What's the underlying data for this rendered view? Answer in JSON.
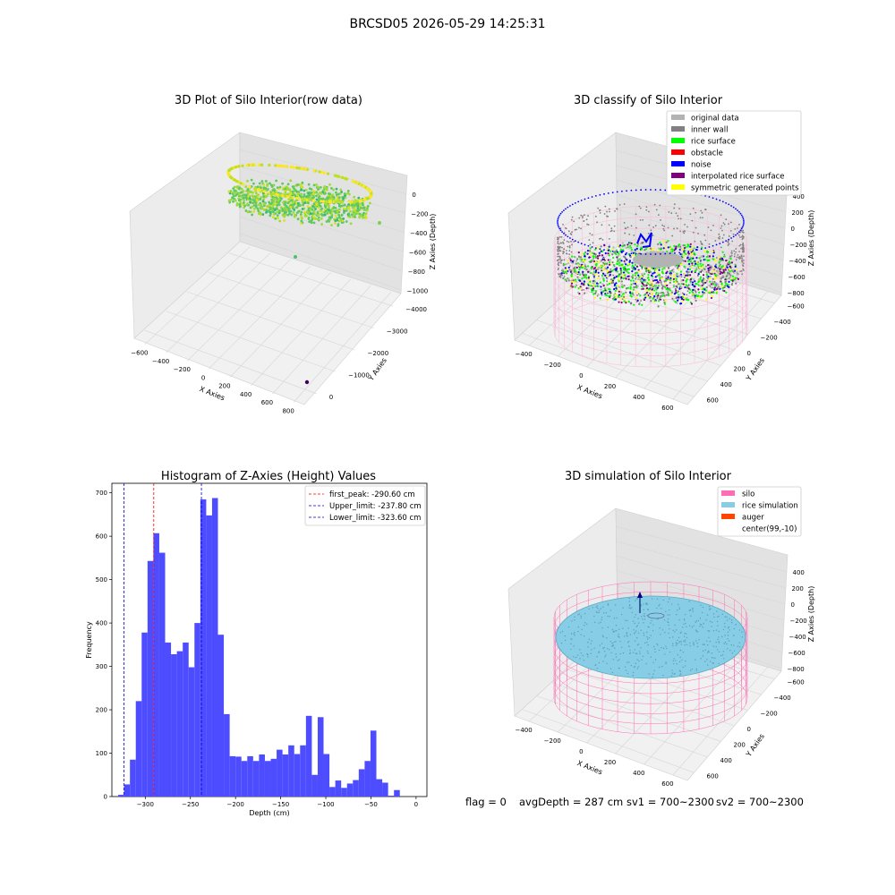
{
  "figure": {
    "title": "BRCSD05 2026-05-29 14:25:31",
    "status_text": {
      "flag": "flag = 0",
      "avg_depth": "avgDepth = 287 cm",
      "sv1": "sv1 = 700~2300",
      "sv2": "sv2 = 700~2300"
    }
  },
  "colors": {
    "hist_bar": "#4d4dff",
    "peak_line": "#ff0000",
    "limit_line": "#0000cc",
    "silo_wire": "#ff6eb4",
    "rice_fill": "#87cde6",
    "auger": "#ff4500",
    "rice_surface": "#00ff00",
    "inner_wall": "#808080",
    "original_data": "#b3b3b3",
    "obstacle": "#ff0000",
    "noise": "#0000ff",
    "interpolated": "#800080",
    "symmetric": "#ffff00"
  },
  "chart_data": [
    {
      "type": "scatter",
      "projection": "3d",
      "title": "3D Plot of Silo Interior(row data)",
      "xlabel": "X Axies",
      "ylabel": "Y Axies",
      "zlabel": "Z Axies (Depth)",
      "x_ticks": [
        "−600",
        "−400",
        "−200",
        "0",
        "200",
        "400",
        "600",
        "800"
      ],
      "y_ticks": [
        "0",
        "−1000",
        "−2000",
        "−3000",
        "−4000"
      ],
      "z_ticks": [
        "0",
        "−200",
        "−400",
        "−600",
        "−800",
        "−1000"
      ],
      "grid": true,
      "colormap": "viridis"
    },
    {
      "type": "scatter",
      "projection": "3d",
      "title": "3D classify of Silo Interior",
      "xlabel": "X Axies",
      "ylabel": "Y Axies",
      "zlabel": "Z Axies (Depth)",
      "x_ticks": [
        "−400",
        "−200",
        "0",
        "200",
        "400",
        "600"
      ],
      "y_ticks": [
        "600",
        "400",
        "200",
        "0",
        "−200",
        "−400",
        "−600"
      ],
      "z_ticks": [
        "400",
        "200",
        "0",
        "−200",
        "−400",
        "−600",
        "−800"
      ],
      "grid": true,
      "legend_position": "top-right",
      "legend": [
        {
          "label": "original data",
          "color": "#b3b3b3"
        },
        {
          "label": "inner wall",
          "color": "#808080"
        },
        {
          "label": "rice surface",
          "color": "#00ff00"
        },
        {
          "label": "obstacle",
          "color": "#ff0000"
        },
        {
          "label": "noise",
          "color": "#0000ff"
        },
        {
          "label": "interpolated rice surface",
          "color": "#800080"
        },
        {
          "label": "symmetric generated points",
          "color": "#ffff00"
        }
      ]
    },
    {
      "type": "bar",
      "subtype": "histogram",
      "title": "Histogram of Z-Axies (Height) Values",
      "xlabel": "Depth (cm)",
      "ylabel": "Frequency",
      "xlim": [
        -337,
        12
      ],
      "ylim": [
        0,
        722
      ],
      "x_ticks": [
        -300,
        -250,
        -200,
        -150,
        -100,
        -50,
        0
      ],
      "y_ticks": [
        0,
        100,
        200,
        300,
        400,
        500,
        600,
        700
      ],
      "bin_start": -330,
      "bin_width": 6.5,
      "values": [
        4,
        28,
        85,
        220,
        378,
        543,
        607,
        562,
        355,
        328,
        335,
        355,
        298,
        400,
        685,
        648,
        688,
        373,
        190,
        93,
        92,
        82,
        93,
        82,
        97,
        82,
        87,
        108,
        97,
        118,
        98,
        118,
        186,
        50,
        183,
        98,
        22,
        37,
        20,
        30,
        38,
        63,
        82,
        152,
        40,
        32,
        2,
        15
      ],
      "vlines": [
        {
          "label": "first_peak: -290.60 cm",
          "x": -290.6,
          "style": "dashed",
          "color": "#ff0000"
        },
        {
          "label": "Upper_limit: -237.80 cm",
          "x": -237.8,
          "style": "dashed",
          "color": "#0000cc"
        },
        {
          "label": "Lower_limit: -323.60 cm",
          "x": -323.6,
          "style": "dashed",
          "color": "#0000cc"
        }
      ],
      "legend_position": "top-right",
      "grid": false
    },
    {
      "type": "scatter",
      "projection": "3d",
      "title": "3D simulation of Silo Interior",
      "xlabel": "X Axies",
      "ylabel": "Y Axies",
      "zlabel": "Z Axies (Depth)",
      "x_ticks": [
        "−400",
        "−200",
        "0",
        "200",
        "400",
        "600"
      ],
      "y_ticks": [
        "600",
        "400",
        "200",
        "0",
        "−200",
        "−400",
        "−600"
      ],
      "z_ticks": [
        "400",
        "200",
        "0",
        "−200",
        "−400",
        "−600",
        "−800"
      ],
      "grid": true,
      "legend_position": "top-right",
      "legend": [
        {
          "label": "silo",
          "color": "#ff6eb4"
        },
        {
          "label": "rice simulation",
          "color": "#87cde6"
        },
        {
          "label": "auger",
          "color": "#ff4500"
        },
        {
          "label": "center(99,-10)",
          "color": ""
        }
      ]
    }
  ]
}
